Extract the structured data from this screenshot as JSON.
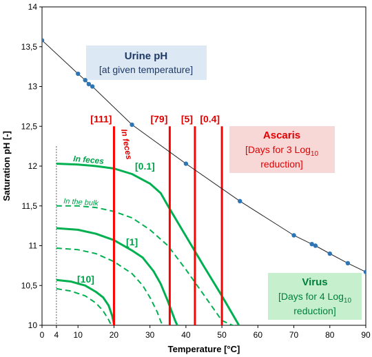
{
  "chart_data": {
    "type": "line",
    "xlabel": "Temperature [°C]",
    "ylabel": "Saturation pH [-]",
    "xlim": [
      0,
      90
    ],
    "ylim": [
      10,
      14
    ],
    "x_ticks": [
      "0",
      "4",
      "10",
      "20",
      "30",
      "40",
      "50",
      "60",
      "70",
      "80",
      "90"
    ],
    "y_ticks": [
      "10",
      "10,5",
      "11",
      "11,5",
      "12",
      "12,5",
      "13",
      "13,5",
      "14"
    ],
    "grid": false,
    "colors": {
      "urine": "#2e75b6",
      "ascaris": "#ff0000",
      "virus": "#00b050",
      "text_green": "#00a04a"
    },
    "series": [
      {
        "name": "Urine pH",
        "points": [
          [
            0,
            13.58
          ],
          [
            10,
            13.16
          ],
          [
            12,
            13.08
          ],
          [
            13,
            13.03
          ],
          [
            14,
            13.0
          ],
          [
            25,
            12.52
          ],
          [
            40,
            12.03
          ],
          [
            55,
            11.56
          ],
          [
            70,
            11.13
          ],
          [
            75,
            11.02
          ],
          [
            76,
            11.0
          ],
          [
            80,
            10.9
          ],
          [
            85,
            10.78
          ],
          [
            90,
            10.67
          ]
        ]
      },
      {
        "group": "Virus",
        "kind": "solid",
        "points": [
          [
            4,
            12.03
          ],
          [
            10,
            12.02
          ],
          [
            15,
            12.0
          ],
          [
            20,
            11.97
          ],
          [
            25,
            11.9
          ],
          [
            30,
            11.78
          ],
          [
            33,
            11.66
          ],
          [
            35,
            11.5
          ],
          [
            40,
            11.12
          ],
          [
            45,
            10.74
          ],
          [
            50,
            10.37
          ],
          [
            55,
            9.98
          ],
          [
            61,
            9.95
          ]
        ]
      },
      {
        "group": "Virus",
        "kind": "dashed",
        "points": [
          [
            4,
            11.5
          ],
          [
            10,
            11.5
          ],
          [
            15,
            11.48
          ],
          [
            20,
            11.43
          ],
          [
            25,
            11.35
          ],
          [
            30,
            11.2
          ],
          [
            35,
            11.0
          ],
          [
            40,
            10.7
          ],
          [
            45,
            10.38
          ],
          [
            50,
            10.06
          ],
          [
            53,
            10.0
          ],
          [
            57,
            9.95
          ]
        ]
      },
      {
        "group": "Virus",
        "kind": "solid",
        "points": [
          [
            4,
            11.22
          ],
          [
            10,
            11.2
          ],
          [
            15,
            11.15
          ],
          [
            20,
            11.07
          ],
          [
            25,
            10.94
          ],
          [
            28,
            10.85
          ],
          [
            31,
            10.68
          ],
          [
            33,
            10.52
          ],
          [
            35,
            10.3
          ],
          [
            37,
            10.06
          ],
          [
            38,
            9.96
          ]
        ]
      },
      {
        "group": "Virus",
        "kind": "dashed",
        "points": [
          [
            4,
            10.97
          ],
          [
            10,
            10.95
          ],
          [
            15,
            10.9
          ],
          [
            20,
            10.8
          ],
          [
            25,
            10.65
          ],
          [
            28,
            10.5
          ],
          [
            30,
            10.35
          ],
          [
            32,
            10.17
          ],
          [
            33,
            10.05
          ],
          [
            34,
            9.95
          ]
        ]
      },
      {
        "group": "Virus",
        "kind": "solid",
        "points": [
          [
            4,
            10.57
          ],
          [
            8,
            10.55
          ],
          [
            12,
            10.5
          ],
          [
            15,
            10.42
          ],
          [
            17,
            10.35
          ],
          [
            18.5,
            10.25
          ],
          [
            19.5,
            10.12
          ],
          [
            20,
            10.02
          ]
        ]
      },
      {
        "group": "Virus",
        "kind": "dashed",
        "points": [
          [
            4,
            10.46
          ],
          [
            8,
            10.43
          ],
          [
            12,
            10.37
          ],
          [
            15,
            10.28
          ],
          [
            17,
            10.18
          ],
          [
            18.5,
            10.07
          ],
          [
            19.5,
            9.98
          ]
        ]
      }
    ],
    "ascaris_lines": [
      {
        "x": 20,
        "y_top": 12.5,
        "label": "[111]"
      },
      {
        "x": 35.5,
        "y_top": 12.5,
        "label": "[79]"
      },
      {
        "x": 42.5,
        "y_top": 12.5,
        "label": "[5]"
      },
      {
        "x": 50,
        "y_top": 12.5,
        "label": "[0.4]"
      }
    ],
    "virus_labels": [
      "[0.1]",
      "[1]",
      "[10]"
    ],
    "annotations": {
      "in_feces_green": "In feces",
      "in_bulk": "In the bulk",
      "in_feces_red": "In feces",
      "low_temp_marker_x": 4
    },
    "legend_boxes": {
      "urine": {
        "title": "Urine pH",
        "line2": "[at given temperature]"
      },
      "ascaris": {
        "title": "Ascaris",
        "line2": "[Days for 3 Log",
        "sub": "10",
        "line3": "reduction]"
      },
      "virus": {
        "title": "Virus",
        "line2": "[Days for 4 Log",
        "sub": "10",
        "line3": "reduction]"
      }
    }
  }
}
